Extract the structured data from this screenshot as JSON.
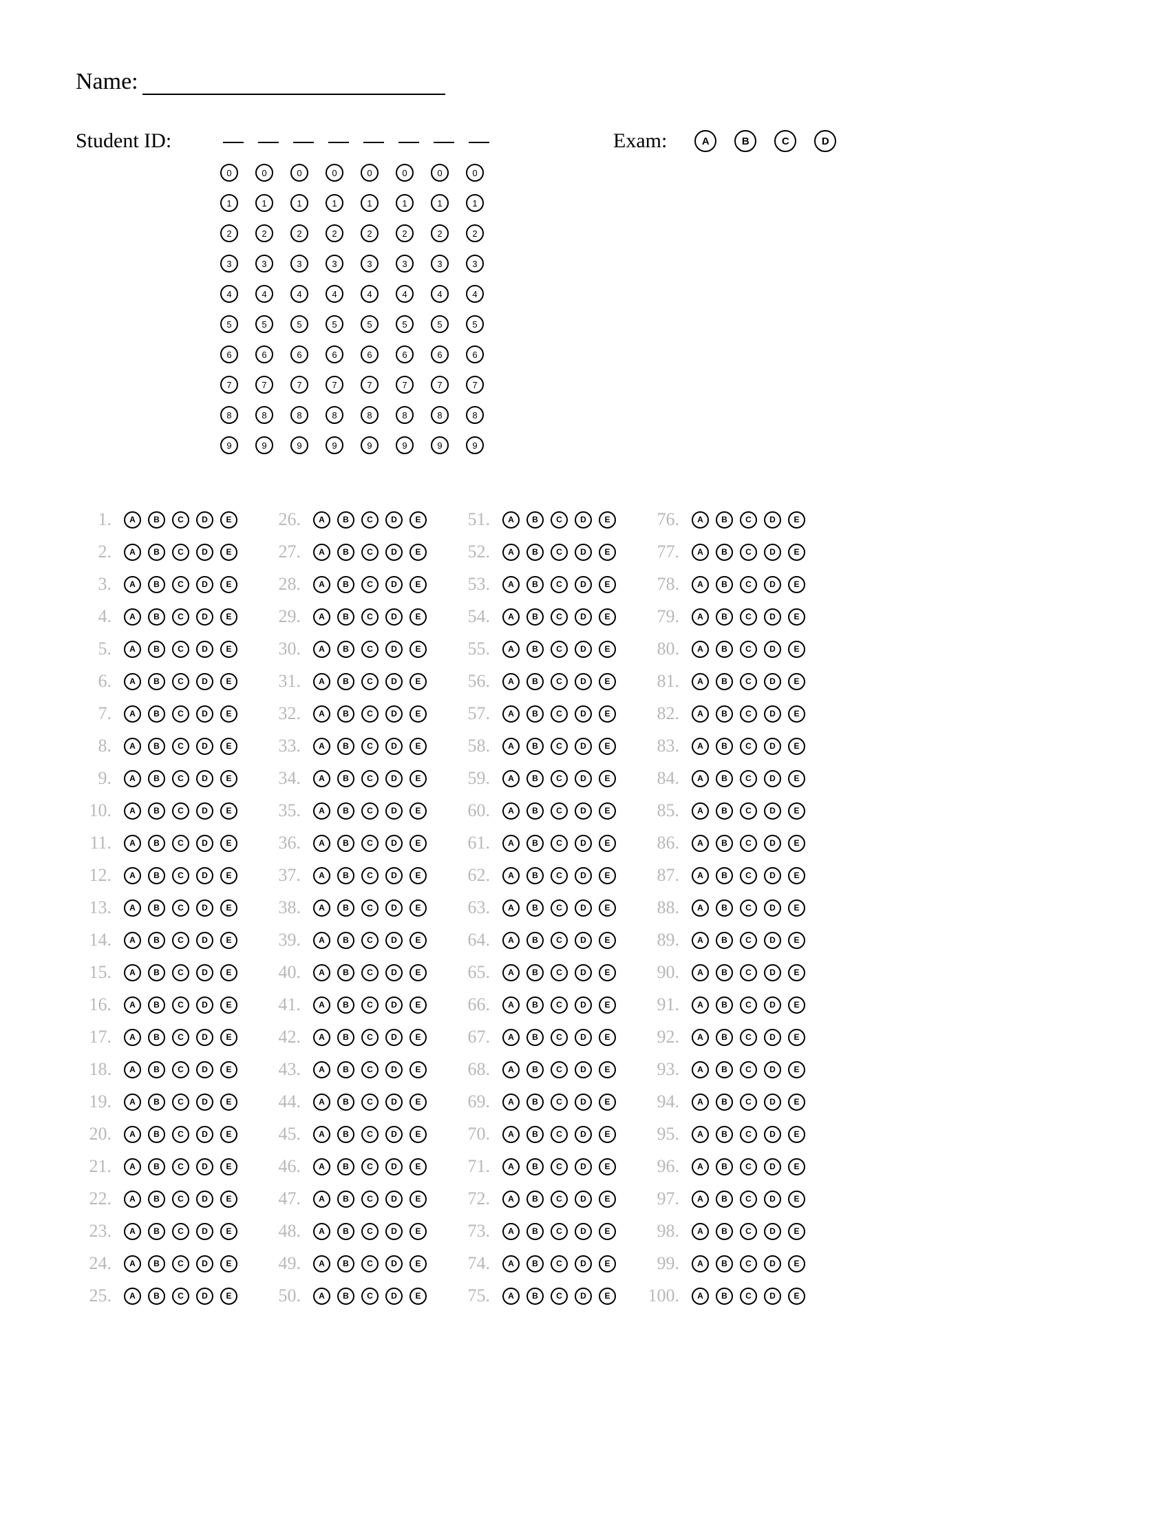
{
  "name_label": "Name:",
  "student_id_label": "Student ID:",
  "exam_label": "Exam:",
  "student_id": {
    "digit_columns": 8,
    "digits": [
      "0",
      "1",
      "2",
      "3",
      "4",
      "5",
      "6",
      "7",
      "8",
      "9"
    ]
  },
  "exam_options": [
    "A",
    "B",
    "C",
    "D"
  ],
  "question_options": [
    "A",
    "B",
    "C",
    "D",
    "E"
  ],
  "question_columns": [
    {
      "start": 1,
      "end": 25
    },
    {
      "start": 26,
      "end": 50
    },
    {
      "start": 51,
      "end": 75
    },
    {
      "start": 76,
      "end": 100
    }
  ],
  "colors": {
    "background": "#ffffff",
    "text": "#000000",
    "question_number": "#b8b8b8",
    "bubble_border": "#000000"
  }
}
